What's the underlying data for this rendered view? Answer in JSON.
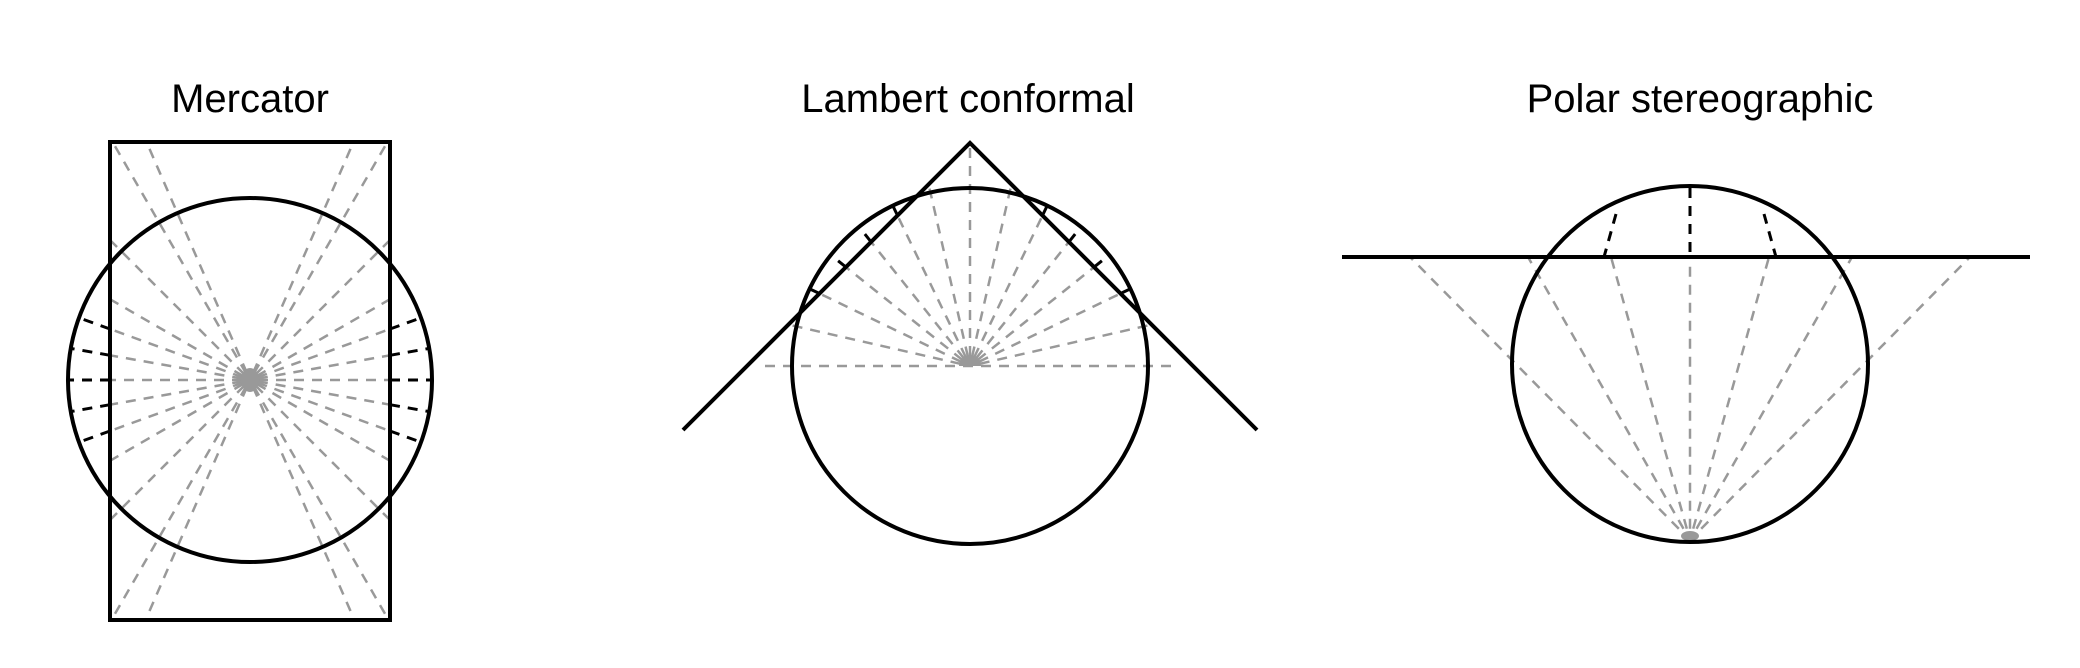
{
  "panels": [
    {
      "id": "mercator",
      "title": "Mercator",
      "surface": "cylinder"
    },
    {
      "id": "lambert",
      "title": "Lambert conformal",
      "surface": "cone"
    },
    {
      "id": "polar",
      "title": "Polar stereographic",
      "surface": "plane"
    }
  ],
  "colors": {
    "outline": "#000000",
    "projection_ray": "#999999",
    "ink": "#000000"
  }
}
